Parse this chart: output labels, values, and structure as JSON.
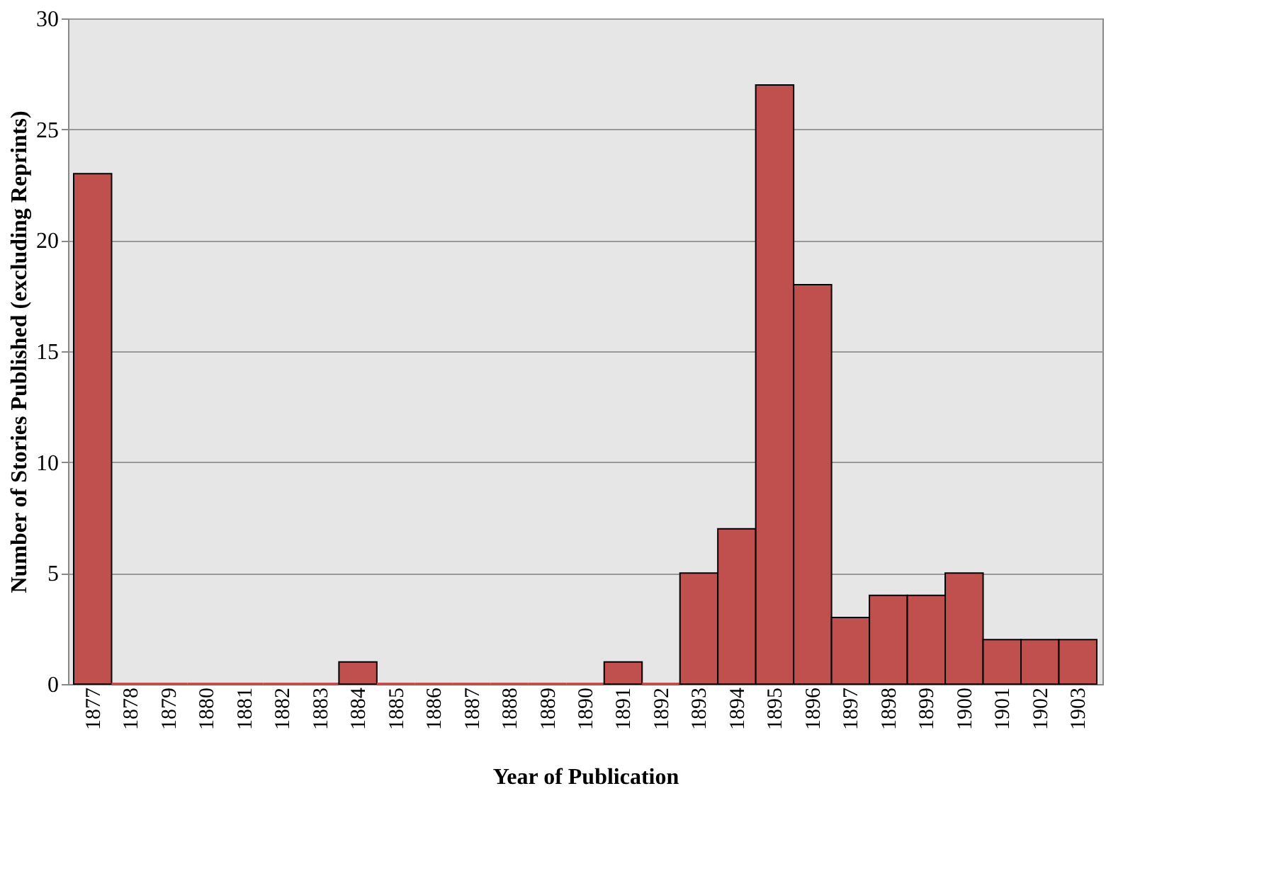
{
  "chart_data": {
    "type": "bar",
    "xlabel": "Year of Publication",
    "ylabel": "Number of Stories Published (excluding Reprints)",
    "categories": [
      "1877",
      "1878",
      "1879",
      "1880",
      "1881",
      "1882",
      "1883",
      "1884",
      "1885",
      "1886",
      "1887",
      "1888",
      "1889",
      "1890",
      "1891",
      "1892",
      "1893",
      "1894",
      "1895",
      "1896",
      "1897",
      "1898",
      "1899",
      "1900",
      "1901",
      "1902",
      "1903"
    ],
    "values": [
      23,
      0,
      0,
      0,
      0,
      0,
      0,
      1,
      0,
      0,
      0,
      0,
      0,
      0,
      1,
      0,
      5,
      7,
      27,
      18,
      3,
      4,
      4,
      5,
      2,
      2,
      2
    ],
    "color": "#c0504d",
    "ylim": [
      0,
      30
    ],
    "yticks": [
      0,
      5,
      10,
      15,
      20,
      25,
      30
    ],
    "grid": "y"
  }
}
